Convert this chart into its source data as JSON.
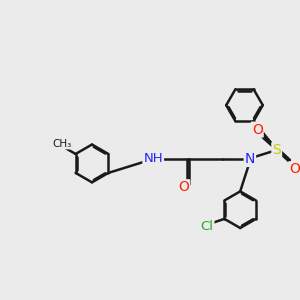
{
  "bg_color": "#ebebeb",
  "bond_color": "#1a1a1a",
  "bond_width": 1.8,
  "rbo": 0.038,
  "atom_colors": {
    "N": "#2222ff",
    "O": "#ff2200",
    "S": "#cccc00",
    "Cl": "#22aa22",
    "H": "#888888",
    "C": "#1a1a1a"
  },
  "figsize": [
    3.0,
    3.0
  ],
  "dpi": 100,
  "xlim": [
    0.0,
    9.5
  ],
  "ylim": [
    2.2,
    8.8
  ]
}
